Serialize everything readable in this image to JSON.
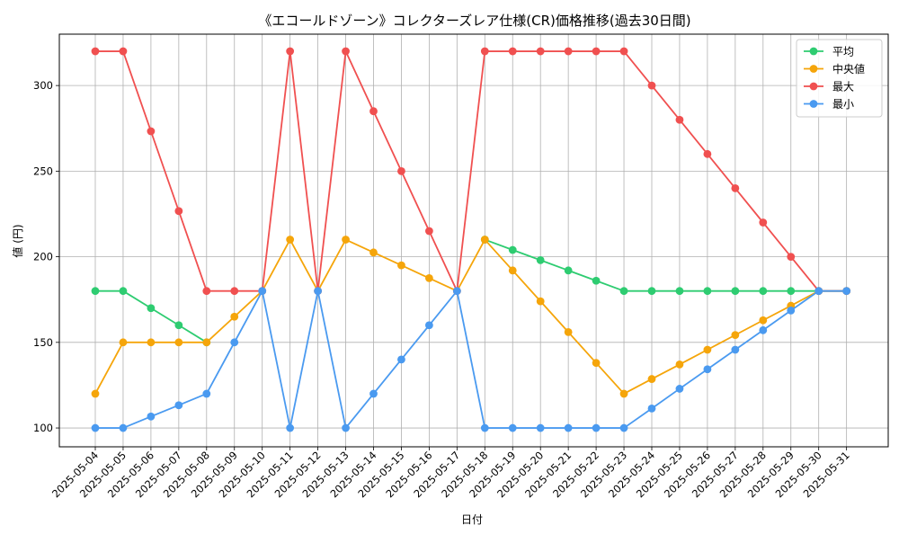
{
  "chart_data": {
    "type": "line",
    "title": "《エコールドゾーン》コレクターズレア仕様(CR)価格推移(過去30日間)",
    "xlabel": "日付",
    "ylabel": "値 (円)",
    "ylim": [
      89,
      330
    ],
    "yticks": [
      100,
      150,
      200,
      250,
      300
    ],
    "grid": true,
    "legend_position": "top-right",
    "categories": [
      "2025-05-04",
      "2025-05-05",
      "2025-05-06",
      "2025-05-07",
      "2025-05-08",
      "2025-05-09",
      "2025-05-10",
      "2025-05-11",
      "2025-05-12",
      "2025-05-13",
      "2025-05-14",
      "2025-05-15",
      "2025-05-16",
      "2025-05-17",
      "2025-05-18",
      "2025-05-19",
      "2025-05-20",
      "2025-05-21",
      "2025-05-22",
      "2025-05-23",
      "2025-05-24",
      "2025-05-25",
      "2025-05-26",
      "2025-05-27",
      "2025-05-28",
      "2025-05-29",
      "2025-05-30",
      "2025-05-31"
    ],
    "series": [
      {
        "name": "平均",
        "color": "#2ecc71",
        "values": [
          180,
          180,
          170,
          160,
          150,
          null,
          null,
          null,
          null,
          null,
          null,
          null,
          null,
          null,
          210,
          204,
          198,
          192,
          186,
          180,
          180,
          180,
          180,
          180,
          180,
          180,
          180,
          180
        ]
      },
      {
        "name": "中央値",
        "color": "#f5a50a",
        "values": [
          120,
          150,
          150,
          150,
          150,
          165,
          180,
          210,
          180,
          210,
          202.5,
          195,
          187.5,
          180,
          210,
          192,
          174,
          156,
          138,
          120,
          128.6,
          137.1,
          145.7,
          154.3,
          162.9,
          171.4,
          180,
          180
        ]
      },
      {
        "name": "最大",
        "color": "#f05050",
        "values": [
          320,
          320,
          273.3,
          226.7,
          180,
          180,
          180,
          320,
          180,
          320,
          285,
          250,
          215,
          180,
          320,
          320,
          320,
          320,
          320,
          320,
          300,
          280,
          260,
          240,
          220,
          200,
          180,
          180
        ]
      },
      {
        "name": "最小",
        "color": "#4a9af0",
        "values": [
          100,
          100,
          106.7,
          113.3,
          120,
          150,
          180,
          100,
          180,
          100,
          120,
          140,
          160,
          180,
          100,
          100,
          100,
          100,
          100,
          100,
          111.4,
          122.9,
          134.3,
          145.7,
          157.1,
          168.6,
          180,
          180
        ]
      }
    ]
  }
}
